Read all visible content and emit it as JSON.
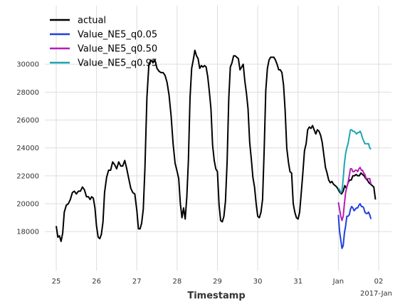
{
  "chart_data": {
    "type": "line",
    "xlabel": "Timestamp",
    "x_offset_label": "2017-Jan",
    "x_ticks": [
      {
        "t": 0,
        "label": "25"
      },
      {
        "t": 1,
        "label": "26"
      },
      {
        "t": 2,
        "label": "27"
      },
      {
        "t": 3,
        "label": "28"
      },
      {
        "t": 4,
        "label": "29"
      },
      {
        "t": 5,
        "label": "30"
      },
      {
        "t": 6,
        "label": "31"
      },
      {
        "t": 7,
        "label": "Jan"
      },
      {
        "t": 8,
        "label": "02"
      }
    ],
    "y_ticks": [
      18000,
      20000,
      22000,
      24000,
      26000,
      28000,
      30000
    ],
    "ylim": [
      16200,
      31700
    ],
    "xlim": [
      -0.25,
      8.3
    ],
    "grid": true,
    "legend_position": "top-left",
    "colors": {
      "actual": "#000000",
      "q05": "#1f3fe0",
      "q50": "#b41fb4",
      "q95": "#1fa5b4",
      "grid": "#dddddd"
    },
    "series": [
      {
        "name": "actual",
        "color_key": "actual",
        "points": [
          [
            0.0,
            18400
          ],
          [
            0.04,
            17600
          ],
          [
            0.08,
            17700
          ],
          [
            0.12,
            17300
          ],
          [
            0.16,
            17900
          ],
          [
            0.2,
            19400
          ],
          [
            0.25,
            19900
          ],
          [
            0.3,
            20000
          ],
          [
            0.35,
            20300
          ],
          [
            0.4,
            20800
          ],
          [
            0.45,
            20900
          ],
          [
            0.5,
            20700
          ],
          [
            0.55,
            20900
          ],
          [
            0.6,
            20900
          ],
          [
            0.65,
            21200
          ],
          [
            0.7,
            21000
          ],
          [
            0.75,
            20500
          ],
          [
            0.8,
            20500
          ],
          [
            0.84,
            20300
          ],
          [
            0.88,
            20500
          ],
          [
            0.92,
            20400
          ],
          [
            0.96,
            19700
          ],
          [
            1.0,
            18400
          ],
          [
            1.04,
            17600
          ],
          [
            1.08,
            17500
          ],
          [
            1.12,
            17800
          ],
          [
            1.16,
            18700
          ],
          [
            1.2,
            20800
          ],
          [
            1.25,
            21900
          ],
          [
            1.3,
            22400
          ],
          [
            1.35,
            22400
          ],
          [
            1.4,
            23000
          ],
          [
            1.45,
            22800
          ],
          [
            1.5,
            22500
          ],
          [
            1.55,
            23000
          ],
          [
            1.6,
            22700
          ],
          [
            1.65,
            22700
          ],
          [
            1.7,
            23100
          ],
          [
            1.75,
            22500
          ],
          [
            1.8,
            21800
          ],
          [
            1.85,
            21100
          ],
          [
            1.9,
            20800
          ],
          [
            1.95,
            20700
          ],
          [
            2.0,
            19500
          ],
          [
            2.04,
            18200
          ],
          [
            2.08,
            18200
          ],
          [
            2.12,
            18600
          ],
          [
            2.16,
            19600
          ],
          [
            2.2,
            22500
          ],
          [
            2.25,
            27600
          ],
          [
            2.3,
            30000
          ],
          [
            2.35,
            30300
          ],
          [
            2.4,
            30100
          ],
          [
            2.45,
            30300
          ],
          [
            2.5,
            29700
          ],
          [
            2.55,
            29500
          ],
          [
            2.6,
            29400
          ],
          [
            2.65,
            29400
          ],
          [
            2.7,
            29200
          ],
          [
            2.75,
            28700
          ],
          [
            2.8,
            27800
          ],
          [
            2.85,
            26300
          ],
          [
            2.9,
            24300
          ],
          [
            2.95,
            22900
          ],
          [
            3.0,
            22300
          ],
          [
            3.04,
            21800
          ],
          [
            3.08,
            20000
          ],
          [
            3.12,
            19000
          ],
          [
            3.16,
            19700
          ],
          [
            3.2,
            18900
          ],
          [
            3.24,
            20500
          ],
          [
            3.28,
            23100
          ],
          [
            3.32,
            27600
          ],
          [
            3.36,
            29700
          ],
          [
            3.4,
            30300
          ],
          [
            3.44,
            31000
          ],
          [
            3.48,
            30600
          ],
          [
            3.52,
            30400
          ],
          [
            3.56,
            29700
          ],
          [
            3.6,
            29900
          ],
          [
            3.64,
            29800
          ],
          [
            3.68,
            29900
          ],
          [
            3.72,
            29800
          ],
          [
            3.76,
            29100
          ],
          [
            3.8,
            28000
          ],
          [
            3.84,
            26800
          ],
          [
            3.88,
            24200
          ],
          [
            3.92,
            23100
          ],
          [
            3.96,
            22500
          ],
          [
            4.0,
            22300
          ],
          [
            4.04,
            19900
          ],
          [
            4.08,
            18800
          ],
          [
            4.12,
            18700
          ],
          [
            4.16,
            19100
          ],
          [
            4.2,
            20200
          ],
          [
            4.24,
            23000
          ],
          [
            4.28,
            27500
          ],
          [
            4.32,
            29800
          ],
          [
            4.36,
            30100
          ],
          [
            4.4,
            30600
          ],
          [
            4.44,
            30600
          ],
          [
            4.48,
            30500
          ],
          [
            4.52,
            30400
          ],
          [
            4.56,
            29600
          ],
          [
            4.6,
            29800
          ],
          [
            4.64,
            30000
          ],
          [
            4.68,
            28800
          ],
          [
            4.72,
            27900
          ],
          [
            4.76,
            26800
          ],
          [
            4.8,
            24400
          ],
          [
            4.84,
            23200
          ],
          [
            4.88,
            21900
          ],
          [
            4.92,
            21200
          ],
          [
            4.96,
            20000
          ],
          [
            5.0,
            19100
          ],
          [
            5.04,
            19000
          ],
          [
            5.08,
            19400
          ],
          [
            5.12,
            20300
          ],
          [
            5.16,
            23900
          ],
          [
            5.2,
            28100
          ],
          [
            5.24,
            29700
          ],
          [
            5.28,
            30300
          ],
          [
            5.32,
            30500
          ],
          [
            5.36,
            30500
          ],
          [
            5.4,
            30500
          ],
          [
            5.44,
            30300
          ],
          [
            5.48,
            30000
          ],
          [
            5.52,
            29600
          ],
          [
            5.56,
            29600
          ],
          [
            5.6,
            29400
          ],
          [
            5.64,
            28500
          ],
          [
            5.68,
            26700
          ],
          [
            5.72,
            24000
          ],
          [
            5.76,
            23000
          ],
          [
            5.8,
            22300
          ],
          [
            5.84,
            22200
          ],
          [
            5.88,
            20000
          ],
          [
            5.92,
            19400
          ],
          [
            5.96,
            19000
          ],
          [
            6.0,
            18900
          ],
          [
            6.04,
            19400
          ],
          [
            6.08,
            20800
          ],
          [
            6.12,
            22200
          ],
          [
            6.16,
            23800
          ],
          [
            6.2,
            24300
          ],
          [
            6.24,
            25300
          ],
          [
            6.28,
            25500
          ],
          [
            6.32,
            25400
          ],
          [
            6.36,
            25600
          ],
          [
            6.4,
            25300
          ],
          [
            6.44,
            25000
          ],
          [
            6.48,
            25300
          ],
          [
            6.52,
            25200
          ],
          [
            6.56,
            24900
          ],
          [
            6.6,
            24400
          ],
          [
            6.64,
            23500
          ],
          [
            6.68,
            22600
          ],
          [
            6.72,
            22200
          ],
          [
            6.76,
            21700
          ],
          [
            6.8,
            21500
          ],
          [
            6.84,
            21600
          ],
          [
            6.88,
            21400
          ],
          [
            6.92,
            21300
          ],
          [
            6.96,
            21200
          ],
          [
            7.0,
            21000
          ],
          [
            7.04,
            20800
          ],
          [
            7.08,
            20700
          ],
          [
            7.12,
            20900
          ],
          [
            7.16,
            21300
          ],
          [
            7.2,
            21100
          ],
          [
            7.24,
            21500
          ],
          [
            7.28,
            21700
          ],
          [
            7.32,
            21700
          ],
          [
            7.36,
            22000
          ],
          [
            7.4,
            22000
          ],
          [
            7.44,
            22100
          ],
          [
            7.48,
            22000
          ],
          [
            7.52,
            22000
          ],
          [
            7.56,
            22200
          ],
          [
            7.6,
            22100
          ],
          [
            7.64,
            22000
          ],
          [
            7.68,
            21800
          ],
          [
            7.72,
            21700
          ],
          [
            7.76,
            21500
          ],
          [
            7.8,
            21400
          ],
          [
            7.84,
            21300
          ],
          [
            7.88,
            21200
          ],
          [
            7.92,
            20300
          ]
        ]
      },
      {
        "name": "Value_NE5_q0.05",
        "color_key": "q05",
        "points": [
          [
            7.0,
            19200
          ],
          [
            7.03,
            18000
          ],
          [
            7.06,
            17400
          ],
          [
            7.09,
            16800
          ],
          [
            7.12,
            17000
          ],
          [
            7.15,
            17900
          ],
          [
            7.18,
            18400
          ],
          [
            7.21,
            19100
          ],
          [
            7.24,
            19100
          ],
          [
            7.27,
            19200
          ],
          [
            7.3,
            19600
          ],
          [
            7.33,
            19800
          ],
          [
            7.36,
            19700
          ],
          [
            7.39,
            19500
          ],
          [
            7.42,
            19600
          ],
          [
            7.45,
            19700
          ],
          [
            7.48,
            19700
          ],
          [
            7.51,
            19900
          ],
          [
            7.54,
            20000
          ],
          [
            7.57,
            19800
          ],
          [
            7.6,
            19800
          ],
          [
            7.63,
            19700
          ],
          [
            7.66,
            19400
          ],
          [
            7.69,
            19300
          ],
          [
            7.72,
            19300
          ],
          [
            7.75,
            19400
          ],
          [
            7.78,
            19200
          ],
          [
            7.81,
            18900
          ]
        ]
      },
      {
        "name": "Value_NE5_q0.50",
        "color_key": "q50",
        "points": [
          [
            7.0,
            20100
          ],
          [
            7.03,
            19600
          ],
          [
            7.06,
            19100
          ],
          [
            7.09,
            18800
          ],
          [
            7.12,
            19100
          ],
          [
            7.15,
            20000
          ],
          [
            7.18,
            20800
          ],
          [
            7.21,
            21200
          ],
          [
            7.24,
            21500
          ],
          [
            7.27,
            22000
          ],
          [
            7.3,
            22500
          ],
          [
            7.33,
            22500
          ],
          [
            7.36,
            22300
          ],
          [
            7.39,
            22300
          ],
          [
            7.42,
            22400
          ],
          [
            7.45,
            22400
          ],
          [
            7.48,
            22300
          ],
          [
            7.51,
            22500
          ],
          [
            7.54,
            22600
          ],
          [
            7.57,
            22400
          ],
          [
            7.6,
            22400
          ],
          [
            7.63,
            22200
          ],
          [
            7.66,
            22100
          ],
          [
            7.69,
            21800
          ],
          [
            7.72,
            21800
          ],
          [
            7.75,
            21800
          ],
          [
            7.78,
            21800
          ],
          [
            7.81,
            21400
          ]
        ]
      },
      {
        "name": "Value_NE5_q0.95",
        "color_key": "q95",
        "points": [
          [
            7.0,
            21100
          ],
          [
            7.03,
            21000
          ],
          [
            7.06,
            20800
          ],
          [
            7.09,
            20900
          ],
          [
            7.12,
            21800
          ],
          [
            7.15,
            22900
          ],
          [
            7.18,
            23600
          ],
          [
            7.21,
            24000
          ],
          [
            7.24,
            24300
          ],
          [
            7.27,
            24800
          ],
          [
            7.3,
            25300
          ],
          [
            7.33,
            25300
          ],
          [
            7.36,
            25200
          ],
          [
            7.39,
            25200
          ],
          [
            7.42,
            25100
          ],
          [
            7.45,
            25000
          ],
          [
            7.48,
            25100
          ],
          [
            7.51,
            25100
          ],
          [
            7.54,
            25200
          ],
          [
            7.57,
            25000
          ],
          [
            7.6,
            24700
          ],
          [
            7.63,
            24500
          ],
          [
            7.66,
            24300
          ],
          [
            7.69,
            24300
          ],
          [
            7.72,
            24300
          ],
          [
            7.75,
            24300
          ],
          [
            7.78,
            24000
          ],
          [
            7.81,
            23900
          ]
        ]
      }
    ]
  }
}
